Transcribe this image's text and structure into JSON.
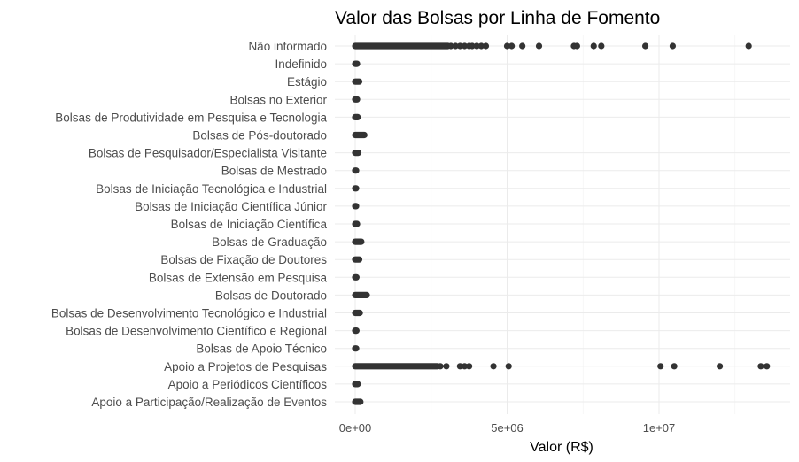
{
  "chart_data": {
    "type": "scatter",
    "title": "Valor das Bolsas por Linha de Fomento",
    "xlabel": "Valor (R$)",
    "ylabel": "",
    "xlim": [
      0,
      14000000
    ],
    "x_ticks": [
      {
        "value": 0,
        "label": "0e+00"
      },
      {
        "value": 5000000,
        "label": "5e+06"
      },
      {
        "value": 10000000,
        "label": "1e+07"
      }
    ],
    "grid": true,
    "point_color": "#333333",
    "categories": [
      "Não informado",
      "Indefinido",
      "Estágio",
      "Bolsas no Exterior",
      "Bolsas de Produtividade em Pesquisa e Tecnologia",
      "Bolsas de Pós-doutorado",
      "Bolsas de Pesquisador/Especialista Visitante",
      "Bolsas de Mestrado",
      "Bolsas de Iniciação Tecnológica e Industrial",
      "Bolsas de Iniciação Científica Júnior",
      "Bolsas de Iniciação Científica",
      "Bolsas de Graduação",
      "Bolsas de Fixação de Doutores",
      "Bolsas de Extensão em Pesquisa",
      "Bolsas de Doutorado",
      "Bolsas de Desenvolvimento Tecnológico e Industrial",
      "Bolsas de Desenvolvimento Científico e Regional",
      "Bolsas de Apoio Técnico",
      "Apoio a Projetos de Pesquisas",
      "Apoio a Periódicos Científicos",
      "Apoio a Participação/Realização de Eventos"
    ],
    "series": [
      {
        "category": "Não informado",
        "range": [
          0,
          3050000
        ],
        "values": [
          3150000,
          3300000,
          3450000,
          3600000,
          3750000,
          3850000,
          4000000,
          4150000,
          4300000,
          5000000,
          5150000,
          5500000,
          6050000,
          7200000,
          7300000,
          7850000,
          8100000,
          9550000,
          10450000,
          12950000
        ]
      },
      {
        "category": "Indefinido",
        "range": [
          0,
          60000
        ],
        "values": []
      },
      {
        "category": "Estágio",
        "range": [
          0,
          130000
        ],
        "values": []
      },
      {
        "category": "Bolsas no Exterior",
        "range": [
          0,
          60000
        ],
        "values": []
      },
      {
        "category": "Bolsas de Produtividade em Pesquisa e Tecnologia",
        "range": [
          0,
          80000
        ],
        "values": []
      },
      {
        "category": "Bolsas de Pós-doutorado",
        "range": [
          0,
          300000
        ],
        "values": []
      },
      {
        "category": "Bolsas de Pesquisador/Especialista Visitante",
        "range": [
          0,
          100000
        ],
        "values": []
      },
      {
        "category": "Bolsas de Mestrado",
        "range": [
          0,
          25000
        ],
        "values": []
      },
      {
        "category": "Bolsas de Iniciação Tecnológica e Industrial",
        "range": [
          0,
          20000
        ],
        "values": []
      },
      {
        "category": "Bolsas de Iniciação Científica Júnior",
        "range": [
          0,
          15000
        ],
        "values": []
      },
      {
        "category": "Bolsas de Iniciação Científica",
        "range": [
          0,
          60000
        ],
        "values": []
      },
      {
        "category": "Bolsas de Graduação",
        "range": [
          0,
          200000
        ],
        "values": []
      },
      {
        "category": "Bolsas de Fixação de Doutores",
        "range": [
          0,
          130000
        ],
        "values": []
      },
      {
        "category": "Bolsas de Extensão em Pesquisa",
        "range": [
          0,
          40000
        ],
        "values": []
      },
      {
        "category": "Bolsas de Doutorado",
        "range": [
          0,
          380000
        ],
        "values": []
      },
      {
        "category": "Bolsas de Desenvolvimento Tecnológico e Industrial",
        "range": [
          0,
          150000
        ],
        "values": []
      },
      {
        "category": "Bolsas de Desenvolvimento Científico e Regional",
        "range": [
          0,
          40000
        ],
        "values": []
      },
      {
        "category": "Bolsas de Apoio Técnico",
        "range": [
          0,
          30000
        ],
        "values": []
      },
      {
        "category": "Apoio a Projetos de Pesquisas",
        "range": [
          0,
          2700000
        ],
        "values": [
          2800000,
          3000000,
          3450000,
          3600000,
          3750000,
          4550000,
          5050000,
          10050000,
          10500000,
          12000000,
          13350000,
          13550000
        ]
      },
      {
        "category": "Apoio a Periódicos Científicos",
        "range": [
          0,
          80000
        ],
        "values": []
      },
      {
        "category": "Apoio a Participação/Realização de Eventos",
        "range": [
          0,
          170000
        ],
        "values": []
      }
    ]
  }
}
